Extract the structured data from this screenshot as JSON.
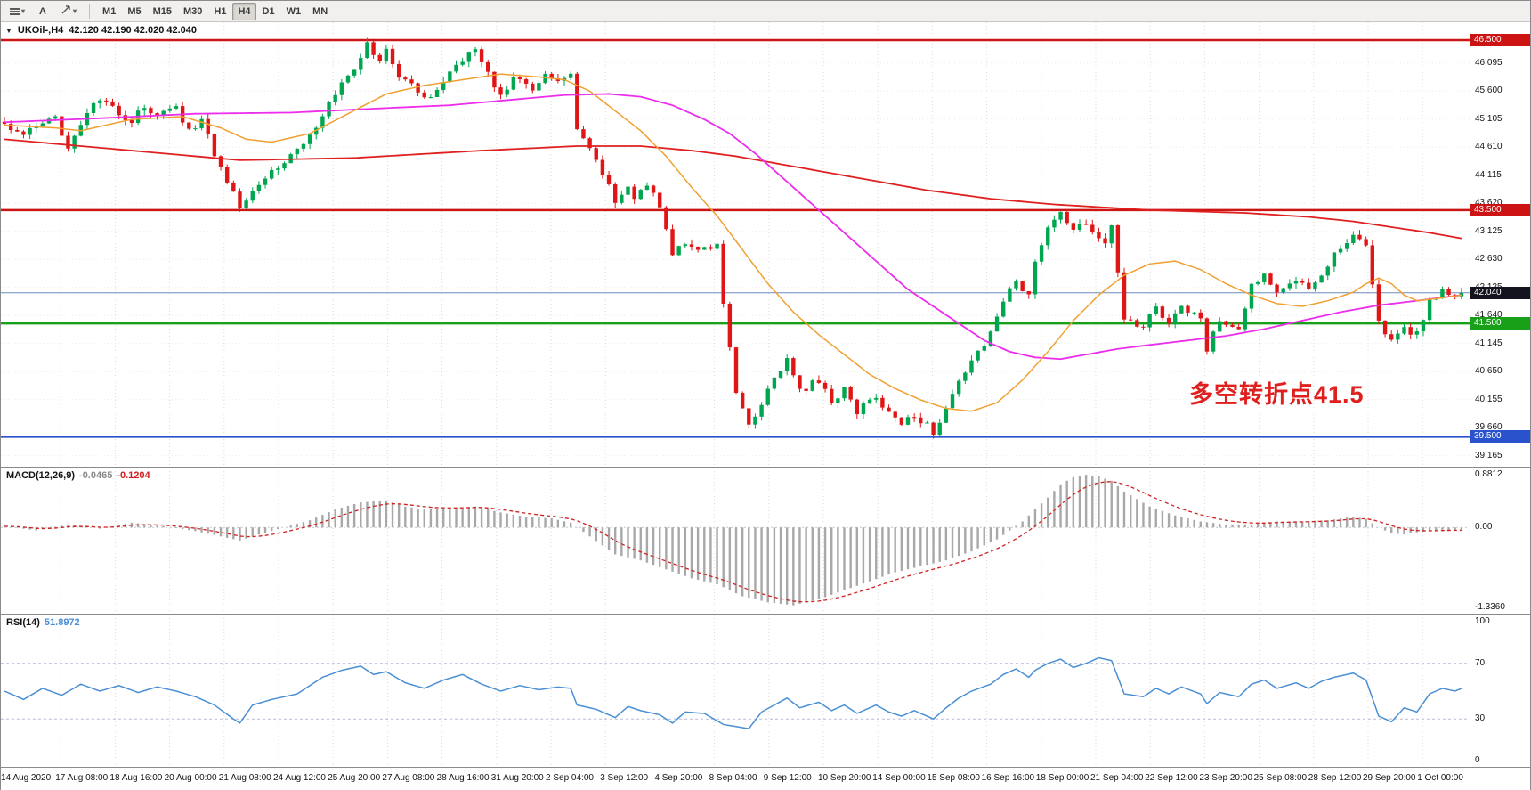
{
  "toolbar": {
    "text_tool_label": "A",
    "timeframes": [
      "M1",
      "M5",
      "M15",
      "M30",
      "H1",
      "H4",
      "D1",
      "W1",
      "MN"
    ],
    "active_timeframe": "H4"
  },
  "chart": {
    "symbol_title": "UKOil-,H4",
    "ohlc_text": "42.120 42.190 42.020 42.040",
    "annotation": {
      "text": "多空转折点41.5",
      "color": "#e01f1f"
    },
    "levels": [
      {
        "value": 46.5,
        "label": "46.500",
        "color": "#cc1414"
      },
      {
        "value": 43.5,
        "label": "43.500",
        "color": "#cc1414"
      },
      {
        "value": 41.5,
        "label": "41.500",
        "color": "#18a018"
      },
      {
        "value": 39.5,
        "label": "39.500",
        "color": "#2a52cc"
      }
    ],
    "bid_line": {
      "value": 42.04,
      "label": "42.040",
      "color": "#6c8ebf",
      "tag_bg": "#14141e"
    },
    "price_axis": [
      "46.095",
      "45.600",
      "45.105",
      "44.610",
      "44.115",
      "43.620",
      "43.125",
      "42.630",
      "42.135",
      "41.640",
      "41.145",
      "40.650",
      "40.155",
      "39.660",
      "39.165"
    ]
  },
  "macd": {
    "name": "MACD(12,26,9)",
    "value_main": "-0.0465",
    "value_signal": "-0.1204",
    "axis": [
      "0.8812",
      "0.00",
      "-1.3360"
    ]
  },
  "rsi": {
    "name": "RSI(14)",
    "value": "51.8972",
    "axis": [
      "100",
      "70",
      "30",
      "0"
    ],
    "levels": [
      70,
      30
    ]
  },
  "time_axis": {
    "labels": [
      "14 Aug 2020",
      "17 Aug 08:00",
      "18 Aug 16:00",
      "20 Aug 00:00",
      "21 Aug 08:00",
      "24 Aug 12:00",
      "25 Aug 20:00",
      "27 Aug 08:00",
      "28 Aug 16:00",
      "31 Aug 20:00",
      "2 Sep 04:00",
      "3 Sep 12:00",
      "4 Sep 20:00",
      "8 Sep 04:00",
      "9 Sep 12:00",
      "10 Sep 20:00",
      "14 Sep 00:00",
      "15 Sep 08:00",
      "16 Sep 16:00",
      "18 Sep 00:00",
      "21 Sep 04:00",
      "22 Sep 12:00",
      "23 Sep 20:00",
      "25 Sep 08:00",
      "28 Sep 12:00",
      "29 Sep 20:00",
      "1 Oct 00:00"
    ]
  },
  "colors": {
    "up": "#00a550",
    "down": "#e01515",
    "ma_fast": "#f0a030",
    "ma_mid": "#ec2dec",
    "ma_slow": "#e02020",
    "macd_hist": "#a8a8a8",
    "macd_signal": "#d02020",
    "rsi_line": "#4a8fd4",
    "grid": "#dadada",
    "bid": "#6c8ebf"
  },
  "chart_data": {
    "type": "candlestick+indicators",
    "symbol": "UKOil-",
    "timeframe": "H4",
    "last_ohlc": {
      "open": 42.12,
      "high": 42.19,
      "low": 42.02,
      "close": 42.04
    },
    "horizontal_levels": [
      46.5,
      43.5,
      41.5,
      39.5
    ],
    "indicators": {
      "macd": {
        "fast": 12,
        "slow": 26,
        "signal": 9,
        "value": -0.0465,
        "signal_value": -0.1204
      },
      "rsi": {
        "period": 14,
        "value": 51.8972
      }
    },
    "n_candles": 230,
    "price_range": [
      39.05,
      46.72
    ],
    "close_path": [
      [
        0,
        45.0
      ],
      [
        3,
        44.85
      ],
      [
        6,
        45.0
      ],
      [
        8,
        45.1
      ],
      [
        10,
        44.65
      ],
      [
        13,
        45.2
      ],
      [
        15,
        45.45
      ],
      [
        18,
        45.2
      ],
      [
        20,
        45.05
      ],
      [
        22,
        45.35
      ],
      [
        24,
        45.15
      ],
      [
        27,
        45.3
      ],
      [
        29,
        44.9
      ],
      [
        31,
        45.1
      ],
      [
        33,
        44.5
      ],
      [
        36,
        43.8
      ],
      [
        37,
        43.55
      ],
      [
        39,
        43.9
      ],
      [
        41,
        44.1
      ],
      [
        44,
        44.35
      ],
      [
        46,
        44.6
      ],
      [
        48,
        44.8
      ],
      [
        50,
        45.2
      ],
      [
        53,
        45.7
      ],
      [
        55,
        46.0
      ],
      [
        57,
        46.42
      ],
      [
        59,
        46.1
      ],
      [
        60,
        46.3
      ],
      [
        62,
        45.9
      ],
      [
        65,
        45.6
      ],
      [
        67,
        45.45
      ],
      [
        69,
        45.8
      ],
      [
        71,
        46.1
      ],
      [
        74,
        46.32
      ],
      [
        76,
        45.9
      ],
      [
        78,
        45.55
      ],
      [
        80,
        45.8
      ],
      [
        83,
        45.65
      ],
      [
        85,
        45.9
      ],
      [
        87,
        45.75
      ],
      [
        89,
        45.85
      ],
      [
        90,
        44.9
      ],
      [
        92,
        44.55
      ],
      [
        94,
        44.15
      ],
      [
        96,
        43.65
      ],
      [
        98,
        43.95
      ],
      [
        99,
        43.7
      ],
      [
        101,
        43.95
      ],
      [
        103,
        43.55
      ],
      [
        105,
        42.75
      ],
      [
        107,
        42.95
      ],
      [
        110,
        42.8
      ],
      [
        112,
        42.85
      ],
      [
        113,
        41.9
      ],
      [
        115,
        40.3
      ],
      [
        117,
        39.65
      ],
      [
        119,
        40.1
      ],
      [
        121,
        40.55
      ],
      [
        123,
        40.85
      ],
      [
        125,
        40.3
      ],
      [
        128,
        40.5
      ],
      [
        130,
        40.1
      ],
      [
        132,
        40.35
      ],
      [
        134,
        39.95
      ],
      [
        137,
        40.2
      ],
      [
        139,
        39.9
      ],
      [
        141,
        39.75
      ],
      [
        143,
        39.9
      ],
      [
        146,
        39.6
      ],
      [
        148,
        39.95
      ],
      [
        150,
        40.45
      ],
      [
        152,
        40.85
      ],
      [
        155,
        41.3
      ],
      [
        157,
        41.9
      ],
      [
        159,
        42.25
      ],
      [
        161,
        41.95
      ],
      [
        162,
        42.6
      ],
      [
        164,
        43.25
      ],
      [
        166,
        43.45
      ],
      [
        168,
        43.1
      ],
      [
        170,
        43.3
      ],
      [
        173,
        42.85
      ],
      [
        174,
        43.2
      ],
      [
        176,
        41.6
      ],
      [
        179,
        41.45
      ],
      [
        181,
        41.75
      ],
      [
        183,
        41.5
      ],
      [
        185,
        41.8
      ],
      [
        188,
        41.55
      ],
      [
        189,
        41.05
      ],
      [
        191,
        41.55
      ],
      [
        194,
        41.4
      ],
      [
        196,
        42.15
      ],
      [
        198,
        42.35
      ],
      [
        200,
        42.1
      ],
      [
        203,
        42.3
      ],
      [
        205,
        42.15
      ],
      [
        207,
        42.4
      ],
      [
        209,
        42.7
      ],
      [
        212,
        43.1
      ],
      [
        214,
        42.9
      ],
      [
        216,
        41.5
      ],
      [
        218,
        41.15
      ],
      [
        220,
        41.4
      ],
      [
        222,
        41.3
      ],
      [
        224,
        41.9
      ],
      [
        226,
        42.1
      ],
      [
        228,
        41.95
      ],
      [
        229,
        42.04
      ]
    ],
    "ma_slow_path": [
      [
        0,
        44.75
      ],
      [
        20,
        44.55
      ],
      [
        37,
        44.38
      ],
      [
        55,
        44.42
      ],
      [
        75,
        44.55
      ],
      [
        90,
        44.63
      ],
      [
        100,
        44.63
      ],
      [
        108,
        44.55
      ],
      [
        115,
        44.45
      ],
      [
        125,
        44.25
      ],
      [
        135,
        44.05
      ],
      [
        145,
        43.85
      ],
      [
        155,
        43.7
      ],
      [
        165,
        43.6
      ],
      [
        180,
        43.5
      ],
      [
        195,
        43.45
      ],
      [
        205,
        43.38
      ],
      [
        212,
        43.3
      ],
      [
        218,
        43.2
      ],
      [
        224,
        43.1
      ],
      [
        229,
        43.0
      ]
    ],
    "ma_mid_path": [
      [
        0,
        45.05
      ],
      [
        15,
        45.12
      ],
      [
        30,
        45.2
      ],
      [
        45,
        45.22
      ],
      [
        60,
        45.3
      ],
      [
        70,
        45.35
      ],
      [
        80,
        45.45
      ],
      [
        88,
        45.53
      ],
      [
        95,
        45.55
      ],
      [
        100,
        45.5
      ],
      [
        105,
        45.35
      ],
      [
        110,
        45.1
      ],
      [
        114,
        44.85
      ],
      [
        118,
        44.5
      ],
      [
        122,
        44.1
      ],
      [
        126,
        43.7
      ],
      [
        130,
        43.3
      ],
      [
        134,
        42.9
      ],
      [
        138,
        42.5
      ],
      [
        142,
        42.1
      ],
      [
        146,
        41.8
      ],
      [
        150,
        41.5
      ],
      [
        154,
        41.2
      ],
      [
        158,
        41.0
      ],
      [
        162,
        40.9
      ],
      [
        166,
        40.87
      ],
      [
        170,
        40.95
      ],
      [
        175,
        41.05
      ],
      [
        180,
        41.12
      ],
      [
        186,
        41.2
      ],
      [
        192,
        41.28
      ],
      [
        198,
        41.4
      ],
      [
        204,
        41.55
      ],
      [
        210,
        41.7
      ],
      [
        216,
        41.82
      ],
      [
        222,
        41.9
      ],
      [
        229,
        42.0
      ]
    ],
    "ma_fast_path": [
      [
        0,
        45.0
      ],
      [
        8,
        44.95
      ],
      [
        12,
        44.9
      ],
      [
        20,
        45.1
      ],
      [
        28,
        45.15
      ],
      [
        34,
        44.95
      ],
      [
        38,
        44.75
      ],
      [
        42,
        44.7
      ],
      [
        48,
        44.85
      ],
      [
        54,
        45.2
      ],
      [
        60,
        45.55
      ],
      [
        66,
        45.7
      ],
      [
        72,
        45.8
      ],
      [
        78,
        45.9
      ],
      [
        84,
        45.85
      ],
      [
        88,
        45.8
      ],
      [
        92,
        45.6
      ],
      [
        96,
        45.25
      ],
      [
        100,
        44.9
      ],
      [
        104,
        44.45
      ],
      [
        108,
        43.9
      ],
      [
        112,
        43.4
      ],
      [
        116,
        42.8
      ],
      [
        120,
        42.2
      ],
      [
        124,
        41.7
      ],
      [
        128,
        41.3
      ],
      [
        132,
        40.95
      ],
      [
        136,
        40.6
      ],
      [
        140,
        40.35
      ],
      [
        144,
        40.15
      ],
      [
        148,
        40.0
      ],
      [
        152,
        39.95
      ],
      [
        156,
        40.1
      ],
      [
        160,
        40.5
      ],
      [
        164,
        41.0
      ],
      [
        168,
        41.55
      ],
      [
        172,
        42.0
      ],
      [
        176,
        42.35
      ],
      [
        180,
        42.55
      ],
      [
        184,
        42.6
      ],
      [
        188,
        42.45
      ],
      [
        192,
        42.2
      ],
      [
        196,
        42.0
      ],
      [
        200,
        41.85
      ],
      [
        204,
        41.8
      ],
      [
        208,
        41.9
      ],
      [
        212,
        42.05
      ],
      [
        214,
        42.2
      ],
      [
        216,
        42.3
      ],
      [
        218,
        42.2
      ],
      [
        220,
        42.0
      ],
      [
        222,
        41.9
      ],
      [
        226,
        41.95
      ],
      [
        229,
        42.0
      ]
    ],
    "macd_range": [
      -1.336,
      0.8812
    ],
    "macd_path": [
      [
        0,
        0.02
      ],
      [
        5,
        -0.05
      ],
      [
        10,
        0.05
      ],
      [
        15,
        -0.02
      ],
      [
        20,
        0.08
      ],
      [
        25,
        0.02
      ],
      [
        30,
        -0.06
      ],
      [
        34,
        -0.15
      ],
      [
        37,
        -0.22
      ],
      [
        40,
        -0.12
      ],
      [
        44,
        0.0
      ],
      [
        48,
        0.12
      ],
      [
        52,
        0.3
      ],
      [
        56,
        0.42
      ],
      [
        60,
        0.45
      ],
      [
        63,
        0.35
      ],
      [
        66,
        0.3
      ],
      [
        70,
        0.32
      ],
      [
        74,
        0.35
      ],
      [
        78,
        0.25
      ],
      [
        82,
        0.18
      ],
      [
        86,
        0.15
      ],
      [
        89,
        0.08
      ],
      [
        92,
        -0.15
      ],
      [
        96,
        -0.45
      ],
      [
        100,
        -0.55
      ],
      [
        104,
        -0.7
      ],
      [
        108,
        -0.85
      ],
      [
        112,
        -0.95
      ],
      [
        116,
        -1.15
      ],
      [
        120,
        -1.25
      ],
      [
        124,
        -1.3
      ],
      [
        128,
        -1.2
      ],
      [
        132,
        -1.05
      ],
      [
        136,
        -0.9
      ],
      [
        140,
        -0.75
      ],
      [
        144,
        -0.65
      ],
      [
        148,
        -0.55
      ],
      [
        152,
        -0.4
      ],
      [
        156,
        -0.2
      ],
      [
        160,
        0.1
      ],
      [
        164,
        0.5
      ],
      [
        166,
        0.72
      ],
      [
        168,
        0.84
      ],
      [
        170,
        0.88
      ],
      [
        172,
        0.85
      ],
      [
        174,
        0.78
      ],
      [
        176,
        0.6
      ],
      [
        180,
        0.35
      ],
      [
        184,
        0.2
      ],
      [
        188,
        0.1
      ],
      [
        192,
        0.05
      ],
      [
        196,
        0.05
      ],
      [
        200,
        0.1
      ],
      [
        204,
        0.1
      ],
      [
        208,
        0.12
      ],
      [
        212,
        0.18
      ],
      [
        214,
        0.14
      ],
      [
        216,
        0.0
      ],
      [
        218,
        -0.1
      ],
      [
        220,
        -0.12
      ],
      [
        222,
        -0.08
      ],
      [
        224,
        -0.06
      ],
      [
        226,
        -0.04
      ],
      [
        229,
        -0.0465
      ]
    ],
    "rsi_range": [
      0,
      100
    ],
    "rsi_path": [
      [
        0,
        50
      ],
      [
        3,
        44
      ],
      [
        6,
        52
      ],
      [
        9,
        47
      ],
      [
        12,
        55
      ],
      [
        15,
        50
      ],
      [
        18,
        54
      ],
      [
        21,
        49
      ],
      [
        24,
        53
      ],
      [
        27,
        50
      ],
      [
        30,
        46
      ],
      [
        33,
        40
      ],
      [
        36,
        30
      ],
      [
        37,
        27
      ],
      [
        39,
        40
      ],
      [
        42,
        44
      ],
      [
        46,
        48
      ],
      [
        50,
        60
      ],
      [
        53,
        65
      ],
      [
        56,
        68
      ],
      [
        58,
        62
      ],
      [
        60,
        64
      ],
      [
        63,
        56
      ],
      [
        66,
        52
      ],
      [
        69,
        58
      ],
      [
        72,
        62
      ],
      [
        75,
        55
      ],
      [
        78,
        50
      ],
      [
        81,
        54
      ],
      [
        84,
        51
      ],
      [
        87,
        53
      ],
      [
        89,
        52
      ],
      [
        90,
        40
      ],
      [
        93,
        37
      ],
      [
        96,
        31
      ],
      [
        98,
        39
      ],
      [
        100,
        36
      ],
      [
        103,
        33
      ],
      [
        105,
        27
      ],
      [
        107,
        35
      ],
      [
        110,
        34
      ],
      [
        113,
        26
      ],
      [
        117,
        23
      ],
      [
        119,
        35
      ],
      [
        121,
        40
      ],
      [
        123,
        45
      ],
      [
        125,
        38
      ],
      [
        128,
        42
      ],
      [
        130,
        36
      ],
      [
        132,
        40
      ],
      [
        134,
        34
      ],
      [
        137,
        40
      ],
      [
        139,
        35
      ],
      [
        141,
        32
      ],
      [
        143,
        36
      ],
      [
        146,
        30
      ],
      [
        148,
        38
      ],
      [
        150,
        45
      ],
      [
        152,
        50
      ],
      [
        155,
        55
      ],
      [
        157,
        62
      ],
      [
        159,
        66
      ],
      [
        161,
        60
      ],
      [
        162,
        65
      ],
      [
        164,
        70
      ],
      [
        166,
        73
      ],
      [
        168,
        67
      ],
      [
        170,
        70
      ],
      [
        172,
        74
      ],
      [
        174,
        72
      ],
      [
        176,
        48
      ],
      [
        179,
        46
      ],
      [
        181,
        52
      ],
      [
        183,
        48
      ],
      [
        185,
        53
      ],
      [
        188,
        48
      ],
      [
        189,
        41
      ],
      [
        191,
        49
      ],
      [
        194,
        46
      ],
      [
        196,
        55
      ],
      [
        198,
        58
      ],
      [
        200,
        52
      ],
      [
        203,
        56
      ],
      [
        205,
        52
      ],
      [
        207,
        57
      ],
      [
        209,
        60
      ],
      [
        212,
        63
      ],
      [
        214,
        58
      ],
      [
        216,
        32
      ],
      [
        218,
        28
      ],
      [
        220,
        38
      ],
      [
        222,
        35
      ],
      [
        224,
        48
      ],
      [
        226,
        52
      ],
      [
        228,
        50
      ],
      [
        229,
        51.9
      ]
    ]
  }
}
